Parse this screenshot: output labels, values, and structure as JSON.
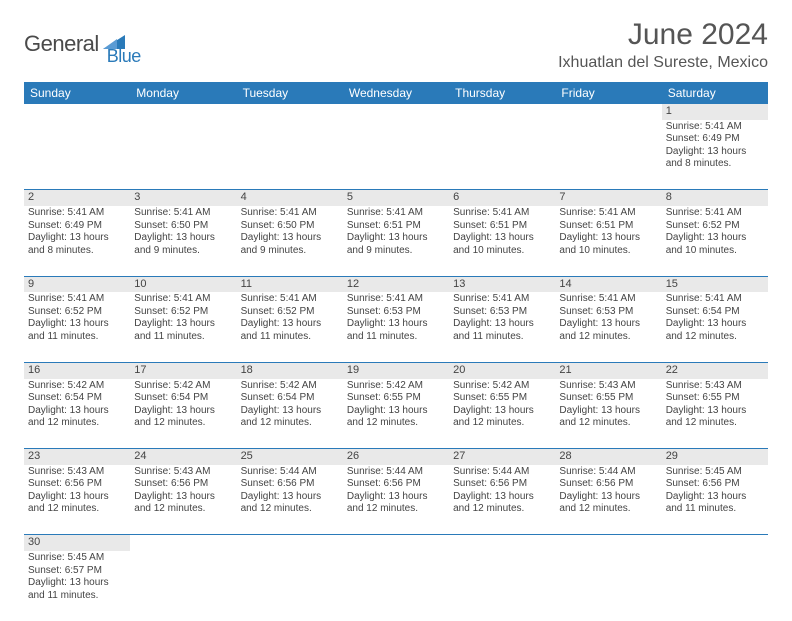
{
  "logo": {
    "part1": "General",
    "part2": "Blue"
  },
  "title": "June 2024",
  "location": "Ixhuatlan del Sureste, Mexico",
  "colors": {
    "header_bg": "#2a7ab9",
    "header_fg": "#ffffff",
    "daynum_bg": "#e9e9e9",
    "rule": "#2a7ab9",
    "logo_gray": "#4a4a4a",
    "logo_blue": "#2a7ab9"
  },
  "weekdays": [
    "Sunday",
    "Monday",
    "Tuesday",
    "Wednesday",
    "Thursday",
    "Friday",
    "Saturday"
  ],
  "weeks": [
    {
      "days": [
        {
          "n": "",
          "sunrise": "",
          "sunset": "",
          "daylight": ""
        },
        {
          "n": "",
          "sunrise": "",
          "sunset": "",
          "daylight": ""
        },
        {
          "n": "",
          "sunrise": "",
          "sunset": "",
          "daylight": ""
        },
        {
          "n": "",
          "sunrise": "",
          "sunset": "",
          "daylight": ""
        },
        {
          "n": "",
          "sunrise": "",
          "sunset": "",
          "daylight": ""
        },
        {
          "n": "",
          "sunrise": "",
          "sunset": "",
          "daylight": ""
        },
        {
          "n": "1",
          "sunrise": "Sunrise: 5:41 AM",
          "sunset": "Sunset: 6:49 PM",
          "daylight": "Daylight: 13 hours and 8 minutes."
        }
      ]
    },
    {
      "days": [
        {
          "n": "2",
          "sunrise": "Sunrise: 5:41 AM",
          "sunset": "Sunset: 6:49 PM",
          "daylight": "Daylight: 13 hours and 8 minutes."
        },
        {
          "n": "3",
          "sunrise": "Sunrise: 5:41 AM",
          "sunset": "Sunset: 6:50 PM",
          "daylight": "Daylight: 13 hours and 9 minutes."
        },
        {
          "n": "4",
          "sunrise": "Sunrise: 5:41 AM",
          "sunset": "Sunset: 6:50 PM",
          "daylight": "Daylight: 13 hours and 9 minutes."
        },
        {
          "n": "5",
          "sunrise": "Sunrise: 5:41 AM",
          "sunset": "Sunset: 6:51 PM",
          "daylight": "Daylight: 13 hours and 9 minutes."
        },
        {
          "n": "6",
          "sunrise": "Sunrise: 5:41 AM",
          "sunset": "Sunset: 6:51 PM",
          "daylight": "Daylight: 13 hours and 10 minutes."
        },
        {
          "n": "7",
          "sunrise": "Sunrise: 5:41 AM",
          "sunset": "Sunset: 6:51 PM",
          "daylight": "Daylight: 13 hours and 10 minutes."
        },
        {
          "n": "8",
          "sunrise": "Sunrise: 5:41 AM",
          "sunset": "Sunset: 6:52 PM",
          "daylight": "Daylight: 13 hours and 10 minutes."
        }
      ]
    },
    {
      "days": [
        {
          "n": "9",
          "sunrise": "Sunrise: 5:41 AM",
          "sunset": "Sunset: 6:52 PM",
          "daylight": "Daylight: 13 hours and 11 minutes."
        },
        {
          "n": "10",
          "sunrise": "Sunrise: 5:41 AM",
          "sunset": "Sunset: 6:52 PM",
          "daylight": "Daylight: 13 hours and 11 minutes."
        },
        {
          "n": "11",
          "sunrise": "Sunrise: 5:41 AM",
          "sunset": "Sunset: 6:52 PM",
          "daylight": "Daylight: 13 hours and 11 minutes."
        },
        {
          "n": "12",
          "sunrise": "Sunrise: 5:41 AM",
          "sunset": "Sunset: 6:53 PM",
          "daylight": "Daylight: 13 hours and 11 minutes."
        },
        {
          "n": "13",
          "sunrise": "Sunrise: 5:41 AM",
          "sunset": "Sunset: 6:53 PM",
          "daylight": "Daylight: 13 hours and 11 minutes."
        },
        {
          "n": "14",
          "sunrise": "Sunrise: 5:41 AM",
          "sunset": "Sunset: 6:53 PM",
          "daylight": "Daylight: 13 hours and 12 minutes."
        },
        {
          "n": "15",
          "sunrise": "Sunrise: 5:41 AM",
          "sunset": "Sunset: 6:54 PM",
          "daylight": "Daylight: 13 hours and 12 minutes."
        }
      ]
    },
    {
      "days": [
        {
          "n": "16",
          "sunrise": "Sunrise: 5:42 AM",
          "sunset": "Sunset: 6:54 PM",
          "daylight": "Daylight: 13 hours and 12 minutes."
        },
        {
          "n": "17",
          "sunrise": "Sunrise: 5:42 AM",
          "sunset": "Sunset: 6:54 PM",
          "daylight": "Daylight: 13 hours and 12 minutes."
        },
        {
          "n": "18",
          "sunrise": "Sunrise: 5:42 AM",
          "sunset": "Sunset: 6:54 PM",
          "daylight": "Daylight: 13 hours and 12 minutes."
        },
        {
          "n": "19",
          "sunrise": "Sunrise: 5:42 AM",
          "sunset": "Sunset: 6:55 PM",
          "daylight": "Daylight: 13 hours and 12 minutes."
        },
        {
          "n": "20",
          "sunrise": "Sunrise: 5:42 AM",
          "sunset": "Sunset: 6:55 PM",
          "daylight": "Daylight: 13 hours and 12 minutes."
        },
        {
          "n": "21",
          "sunrise": "Sunrise: 5:43 AM",
          "sunset": "Sunset: 6:55 PM",
          "daylight": "Daylight: 13 hours and 12 minutes."
        },
        {
          "n": "22",
          "sunrise": "Sunrise: 5:43 AM",
          "sunset": "Sunset: 6:55 PM",
          "daylight": "Daylight: 13 hours and 12 minutes."
        }
      ]
    },
    {
      "days": [
        {
          "n": "23",
          "sunrise": "Sunrise: 5:43 AM",
          "sunset": "Sunset: 6:56 PM",
          "daylight": "Daylight: 13 hours and 12 minutes."
        },
        {
          "n": "24",
          "sunrise": "Sunrise: 5:43 AM",
          "sunset": "Sunset: 6:56 PM",
          "daylight": "Daylight: 13 hours and 12 minutes."
        },
        {
          "n": "25",
          "sunrise": "Sunrise: 5:44 AM",
          "sunset": "Sunset: 6:56 PM",
          "daylight": "Daylight: 13 hours and 12 minutes."
        },
        {
          "n": "26",
          "sunrise": "Sunrise: 5:44 AM",
          "sunset": "Sunset: 6:56 PM",
          "daylight": "Daylight: 13 hours and 12 minutes."
        },
        {
          "n": "27",
          "sunrise": "Sunrise: 5:44 AM",
          "sunset": "Sunset: 6:56 PM",
          "daylight": "Daylight: 13 hours and 12 minutes."
        },
        {
          "n": "28",
          "sunrise": "Sunrise: 5:44 AM",
          "sunset": "Sunset: 6:56 PM",
          "daylight": "Daylight: 13 hours and 12 minutes."
        },
        {
          "n": "29",
          "sunrise": "Sunrise: 5:45 AM",
          "sunset": "Sunset: 6:56 PM",
          "daylight": "Daylight: 13 hours and 11 minutes."
        }
      ]
    },
    {
      "days": [
        {
          "n": "30",
          "sunrise": "Sunrise: 5:45 AM",
          "sunset": "Sunset: 6:57 PM",
          "daylight": "Daylight: 13 hours and 11 minutes."
        },
        {
          "n": "",
          "sunrise": "",
          "sunset": "",
          "daylight": ""
        },
        {
          "n": "",
          "sunrise": "",
          "sunset": "",
          "daylight": ""
        },
        {
          "n": "",
          "sunrise": "",
          "sunset": "",
          "daylight": ""
        },
        {
          "n": "",
          "sunrise": "",
          "sunset": "",
          "daylight": ""
        },
        {
          "n": "",
          "sunrise": "",
          "sunset": "",
          "daylight": ""
        },
        {
          "n": "",
          "sunrise": "",
          "sunset": "",
          "daylight": ""
        }
      ]
    }
  ]
}
